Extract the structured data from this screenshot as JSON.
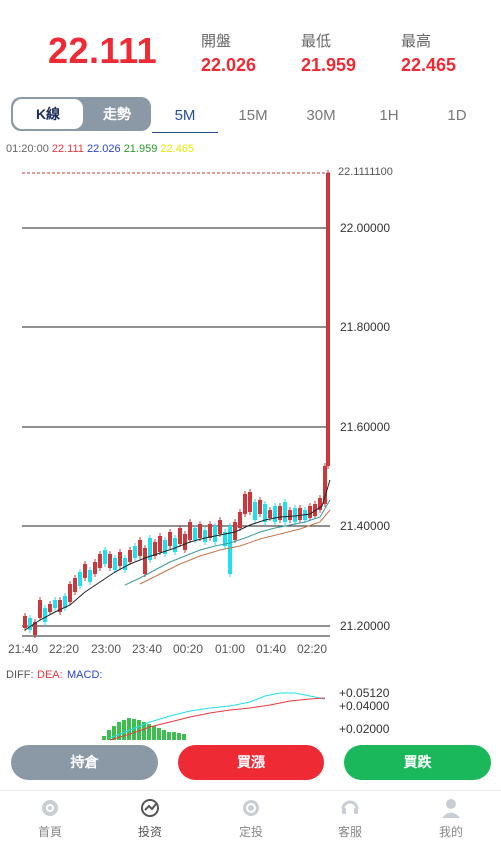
{
  "header": {
    "price": "22.111",
    "stats": [
      {
        "label": "開盤",
        "value": "22.026"
      },
      {
        "label": "最低",
        "value": "21.959"
      },
      {
        "label": "最高",
        "value": "22.465"
      }
    ]
  },
  "mode": {
    "kline": "K線",
    "trend": "走勢"
  },
  "timeframes": [
    "5M",
    "15M",
    "30M",
    "1H",
    "1D"
  ],
  "ohlc": {
    "time": "01:20:00",
    "close": "22.111",
    "open": "22.026",
    "low": "21.959",
    "high": "22.465"
  },
  "chart": {
    "price_labels": [
      "22.1111100",
      "22.00000",
      "21.80000",
      "21.60000",
      "21.40000",
      "21.20000"
    ],
    "time_labels": [
      "21:40",
      "22:20",
      "23:00",
      "23:40",
      "00:20",
      "01:00",
      "01:40",
      "02:20"
    ],
    "indicator_labels": [
      "DIFF:",
      "DEA:",
      "MACD:"
    ],
    "macd_labels": [
      "+0.05120",
      "+0.04000",
      "+0.02000"
    ],
    "colors": {
      "up": "#c8393d",
      "down": "#1ee0ee",
      "ma1": "#222222",
      "ma2": "#3a9aa0",
      "ma3": "#c8774a",
      "diff": "#1ee0ee",
      "dea": "#e8383d",
      "macd": "#3cbf4e"
    }
  },
  "buttons": {
    "hold": "持倉",
    "buy_up": "買漲",
    "buy_down": "買跌"
  },
  "tabs": [
    "首頁",
    "投资",
    "定投",
    "客服",
    "我的"
  ],
  "tab_icons": [
    "home-icon",
    "invest-icon",
    "plan-icon",
    "service-icon",
    "profile-icon"
  ]
}
